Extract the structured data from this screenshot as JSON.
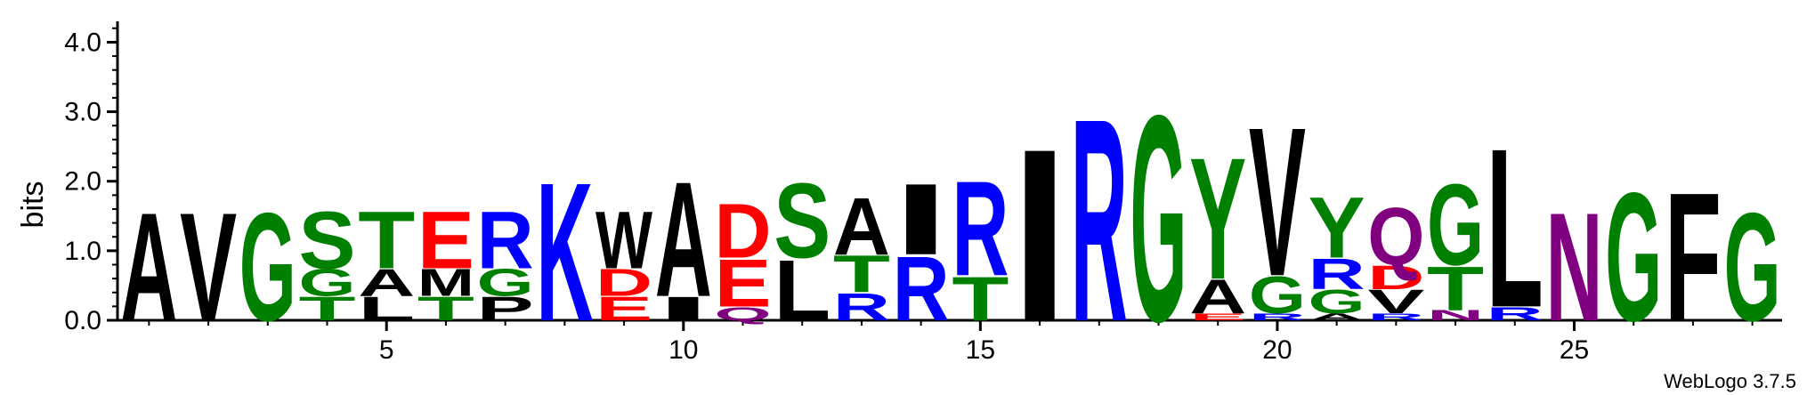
{
  "chart_data": {
    "type": "sequence-logo",
    "ylabel": "bits",
    "ylim": [
      0,
      4.3
    ],
    "yticks": [
      "0.0",
      "1.0",
      "2.0",
      "3.0",
      "4.0"
    ],
    "xlim": [
      0.5,
      28.5
    ],
    "xticks": [
      "5",
      "10",
      "15",
      "20",
      "25"
    ],
    "credit": "WebLogo 3.7.5",
    "colors": {
      "hydrophobic": "#000000",
      "polar": "#008000",
      "basic": "#0000ff",
      "acidic": "#ff0000",
      "amide": "#800080"
    },
    "positions": [
      {
        "pos": 1,
        "letters": [
          {
            "c": "A",
            "bits": 1.6,
            "color": "#000000"
          }
        ]
      },
      {
        "pos": 2,
        "letters": [
          {
            "c": "V",
            "bits": 1.6,
            "color": "#000000"
          }
        ]
      },
      {
        "pos": 3,
        "letters": [
          {
            "c": "G",
            "bits": 1.6,
            "color": "#008000"
          }
        ]
      },
      {
        "pos": 4,
        "letters": [
          {
            "c": "T",
            "bits": 0.35,
            "color": "#008000"
          },
          {
            "c": "G",
            "bits": 0.4,
            "color": "#008000"
          },
          {
            "c": "S",
            "bits": 0.85,
            "color": "#008000"
          }
        ]
      },
      {
        "pos": 5,
        "letters": [
          {
            "c": "L",
            "bits": 0.35,
            "color": "#000000"
          },
          {
            "c": "A",
            "bits": 0.4,
            "color": "#000000"
          },
          {
            "c": "T",
            "bits": 0.85,
            "color": "#008000"
          }
        ]
      },
      {
        "pos": 6,
        "letters": [
          {
            "c": "T",
            "bits": 0.35,
            "color": "#008000"
          },
          {
            "c": "M",
            "bits": 0.4,
            "color": "#000000"
          },
          {
            "c": "E",
            "bits": 0.85,
            "color": "#ff0000"
          }
        ]
      },
      {
        "pos": 7,
        "letters": [
          {
            "c": "P",
            "bits": 0.35,
            "color": "#000000"
          },
          {
            "c": "G",
            "bits": 0.4,
            "color": "#008000"
          },
          {
            "c": "R",
            "bits": 0.85,
            "color": "#0000ff"
          }
        ]
      },
      {
        "pos": 8,
        "letters": [
          {
            "c": "K",
            "bits": 2.05,
            "color": "#0000ff"
          }
        ]
      },
      {
        "pos": 9,
        "letters": [
          {
            "c": "E",
            "bits": 0.35,
            "color": "#ff0000"
          },
          {
            "c": "D",
            "bits": 0.4,
            "color": "#ff0000"
          },
          {
            "c": "W",
            "bits": 0.85,
            "color": "#000000"
          }
        ]
      },
      {
        "pos": 10,
        "letters": [
          {
            "c": "I",
            "bits": 0.35,
            "color": "#000000"
          },
          {
            "c": "A",
            "bits": 1.7,
            "color": "#000000"
          }
        ]
      },
      {
        "pos": 11,
        "letters": [
          {
            "c": "Q",
            "bits": 0.2,
            "color": "#800080"
          },
          {
            "c": "E",
            "bits": 0.7,
            "color": "#ff0000"
          },
          {
            "c": "D",
            "bits": 0.8,
            "color": "#ff0000"
          }
        ]
      },
      {
        "pos": 12,
        "letters": [
          {
            "c": "L",
            "bits": 0.9,
            "color": "#000000"
          },
          {
            "c": "S",
            "bits": 1.1,
            "color": "#008000"
          }
        ]
      },
      {
        "pos": 13,
        "letters": [
          {
            "c": "R",
            "bits": 0.4,
            "color": "#0000ff"
          },
          {
            "c": "T",
            "bits": 0.55,
            "color": "#008000"
          },
          {
            "c": "A",
            "bits": 0.85,
            "color": "#000000"
          }
        ]
      },
      {
        "pos": 14,
        "letters": [
          {
            "c": "R",
            "bits": 0.95,
            "color": "#0000ff"
          },
          {
            "c": "I",
            "bits": 1.05,
            "color": "#000000"
          }
        ]
      },
      {
        "pos": 15,
        "letters": [
          {
            "c": "T",
            "bits": 0.65,
            "color": "#008000"
          },
          {
            "c": "R",
            "bits": 1.4,
            "color": "#0000ff"
          }
        ]
      },
      {
        "pos": 16,
        "letters": [
          {
            "c": "I",
            "bits": 2.55,
            "color": "#000000"
          }
        ]
      },
      {
        "pos": 17,
        "letters": [
          {
            "c": "R",
            "bits": 3.0,
            "color": "#0000ff"
          }
        ]
      },
      {
        "pos": 18,
        "letters": [
          {
            "c": "G",
            "bits": 3.05,
            "color": "#008000"
          }
        ]
      },
      {
        "pos": 19,
        "letters": [
          {
            "c": "E",
            "bits": 0.1,
            "color": "#ff0000"
          },
          {
            "c": "A",
            "bits": 0.5,
            "color": "#000000"
          },
          {
            "c": "Y",
            "bits": 1.8,
            "color": "#008000"
          }
        ]
      },
      {
        "pos": 20,
        "letters": [
          {
            "c": "R",
            "bits": 0.1,
            "color": "#0000ff"
          },
          {
            "c": "G",
            "bits": 0.55,
            "color": "#008000"
          },
          {
            "c": "V",
            "bits": 2.2,
            "color": "#000000"
          }
        ]
      },
      {
        "pos": 21,
        "letters": [
          {
            "c": "A",
            "bits": 0.1,
            "color": "#000000"
          },
          {
            "c": "G",
            "bits": 0.35,
            "color": "#008000"
          },
          {
            "c": "R",
            "bits": 0.45,
            "color": "#0000ff"
          },
          {
            "c": "Y",
            "bits": 0.9,
            "color": "#008000"
          }
        ]
      },
      {
        "pos": 22,
        "letters": [
          {
            "c": "R",
            "bits": 0.1,
            "color": "#0000ff"
          },
          {
            "c": "V",
            "bits": 0.35,
            "color": "#000000"
          },
          {
            "c": "D",
            "bits": 0.35,
            "color": "#ff0000"
          },
          {
            "c": "Q",
            "bits": 0.85,
            "color": "#800080"
          }
        ]
      },
      {
        "pos": 23,
        "letters": [
          {
            "c": "N",
            "bits": 0.15,
            "color": "#800080"
          },
          {
            "c": "T",
            "bits": 0.65,
            "color": "#008000"
          },
          {
            "c": "G",
            "bits": 1.2,
            "color": "#008000"
          }
        ]
      },
      {
        "pos": 24,
        "letters": [
          {
            "c": "R",
            "bits": 0.2,
            "color": "#0000ff"
          },
          {
            "c": "L",
            "bits": 2.35,
            "color": "#000000"
          }
        ]
      },
      {
        "pos": 25,
        "letters": [
          {
            "c": "N",
            "bits": 1.6,
            "color": "#800080"
          }
        ]
      },
      {
        "pos": 26,
        "letters": [
          {
            "c": "G",
            "bits": 1.9,
            "color": "#008000"
          }
        ]
      },
      {
        "pos": 27,
        "letters": [
          {
            "c": "F",
            "bits": 1.9,
            "color": "#000000"
          }
        ]
      },
      {
        "pos": 28,
        "letters": [
          {
            "c": "G",
            "bits": 1.6,
            "color": "#008000"
          }
        ]
      }
    ]
  }
}
